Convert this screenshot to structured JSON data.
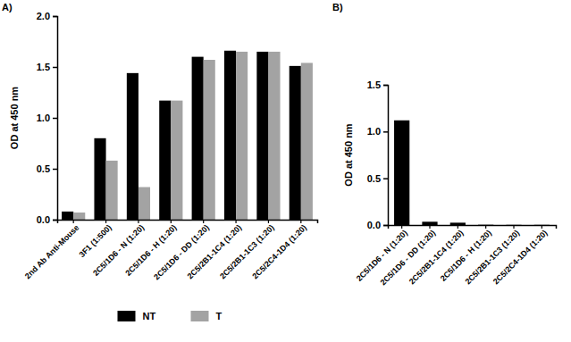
{
  "chart_data": [
    {
      "type": "bar",
      "title": "A)",
      "y_label": "OD at 450 nm",
      "categories": [
        "2nd Ab Anti-Mouse",
        "3F1 (1:500)",
        "2C5/1D6 - N (1:20)",
        "2C5/1D6 - H (1:20)",
        "2C5/1D6 - DD (1:20)",
        "2C5/2B1-1C4 (1:20)",
        "2C5/2B1-1C3 (1:20)",
        "2C5/2C4-1D4 (1:20)"
      ],
      "series": [
        {
          "name": "NT",
          "color": "#000000",
          "values": [
            0.08,
            0.8,
            1.44,
            1.17,
            1.6,
            1.66,
            1.65,
            1.51
          ]
        },
        {
          "name": "T",
          "color": "#a3a3a3",
          "values": [
            0.07,
            0.58,
            0.32,
            1.17,
            1.57,
            1.65,
            1.65,
            1.54
          ]
        }
      ],
      "ylim": [
        0,
        2
      ],
      "yticks": [
        {
          "value": 0,
          "label": "0.0"
        },
        {
          "value": 0.5,
          "label": "0.5"
        },
        {
          "value": 1,
          "label": "1.0"
        },
        {
          "value": 1.5,
          "label": "1.5"
        },
        {
          "value": 2,
          "label": "2.0"
        }
      ],
      "legend": "bottom"
    },
    {
      "type": "bar",
      "title": "B)",
      "y_label": "OD at 450 nm",
      "categories": [
        "2C5/1D6 - N (1:20)",
        "2C5/1D6 - DD (1:20)",
        "2C5/2B1-1C4 (1:20)",
        "2C5/1D6 - H (1:20)",
        "2C5/2B1-1C3 (1:20)",
        "2C5/2C4-1D4 (1:20)"
      ],
      "values": [
        1.12,
        0.035,
        0.025,
        0.003,
        0.002,
        0.002
      ],
      "color": "#000000",
      "ylim": [
        0,
        1.5
      ],
      "yticks": [
        {
          "value": 0,
          "label": "0.0"
        },
        {
          "value": 0.5,
          "label": "0.5"
        },
        {
          "value": 1,
          "label": "1.0"
        },
        {
          "value": 1.5,
          "label": "1.5"
        }
      ]
    }
  ]
}
